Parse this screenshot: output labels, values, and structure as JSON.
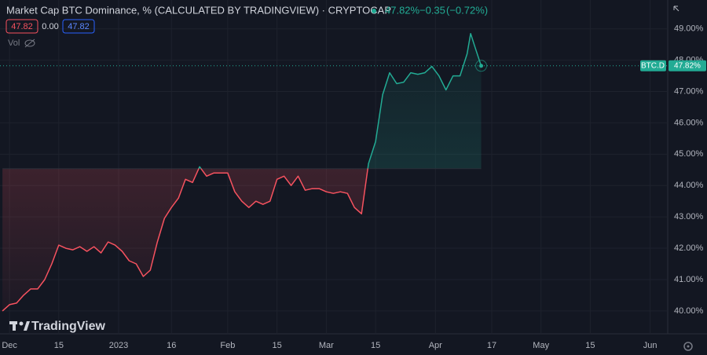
{
  "header": {
    "title": "Market Cap BTC Dominance, % (CALCULATED BY TRADINGVIEW) · CRYPTOCAP",
    "last": "47.82%",
    "change": "−0.35",
    "change_pct": "(−0.72%)",
    "legend_values": [
      "47.82",
      "0.00",
      "47.82"
    ],
    "vol": "Vol",
    "brand": "TradingView"
  },
  "chart_data": {
    "type": "line",
    "symbol": "BTC.D",
    "last_label": "47.82%",
    "baseline": 44.54,
    "up_color": "#22ab94",
    "down_color": "#f7525f",
    "grid": true,
    "x": [
      -2,
      0,
      2,
      4,
      6,
      8,
      10,
      12,
      14,
      16,
      18,
      20,
      22,
      24,
      26,
      28,
      30,
      32,
      34,
      36,
      38,
      40,
      42,
      44,
      46,
      48,
      50,
      52,
      54,
      56,
      58,
      60,
      62,
      64,
      66,
      68,
      70,
      72,
      74,
      76,
      78,
      80,
      82,
      84,
      86,
      88,
      90,
      92,
      94,
      96,
      98,
      100,
      102,
      104,
      106,
      108,
      110,
      112,
      114,
      116,
      118,
      120,
      122,
      124,
      126,
      128,
      130,
      131,
      132,
      134
    ],
    "values": [
      40.0,
      40.2,
      40.25,
      40.5,
      40.7,
      40.7,
      41.0,
      41.5,
      42.1,
      42.0,
      41.95,
      42.05,
      41.9,
      42.05,
      41.85,
      42.2,
      42.1,
      41.9,
      41.6,
      41.5,
      41.1,
      41.3,
      42.2,
      42.95,
      43.3,
      43.6,
      44.2,
      44.1,
      44.6,
      44.3,
      44.4,
      44.4,
      44.4,
      43.8,
      43.5,
      43.3,
      43.5,
      43.4,
      43.5,
      44.2,
      44.3,
      44.0,
      44.3,
      43.85,
      43.9,
      43.9,
      43.8,
      43.75,
      43.8,
      43.75,
      43.3,
      43.1,
      44.7,
      45.4,
      46.9,
      47.6,
      47.25,
      47.3,
      47.6,
      47.55,
      47.6,
      47.8,
      47.5,
      47.05,
      47.5,
      47.5,
      48.2,
      48.85,
      48.5,
      47.82
    ],
    "xlim": [
      -2.7,
      187
    ],
    "xticks": [
      {
        "value": 0,
        "label": "Dec"
      },
      {
        "value": 14,
        "label": "15"
      },
      {
        "value": 31,
        "label": "2023"
      },
      {
        "value": 46,
        "label": "16"
      },
      {
        "value": 62,
        "label": "Feb"
      },
      {
        "value": 76,
        "label": "15"
      },
      {
        "value": 90,
        "label": "Mar"
      },
      {
        "value": 104,
        "label": "15"
      },
      {
        "value": 121,
        "label": "Apr"
      },
      {
        "value": 137,
        "label": "17"
      },
      {
        "value": 151,
        "label": "May"
      },
      {
        "value": 165,
        "label": "15"
      },
      {
        "value": 182,
        "label": "Jun"
      }
    ],
    "ylim": [
      39.27,
      49.92
    ],
    "yticks": [
      {
        "value": 40,
        "label": "40.00%"
      },
      {
        "value": 41,
        "label": "41.00%"
      },
      {
        "value": 42,
        "label": "42.00%"
      },
      {
        "value": 43,
        "label": "43.00%"
      },
      {
        "value": 44,
        "label": "44.00%"
      },
      {
        "value": 45,
        "label": "45.00%"
      },
      {
        "value": 46,
        "label": "46.00%"
      },
      {
        "value": 47,
        "label": "47.00%"
      },
      {
        "value": 48,
        "label": "48.00%"
      },
      {
        "value": 49,
        "label": "49.00%"
      }
    ]
  }
}
